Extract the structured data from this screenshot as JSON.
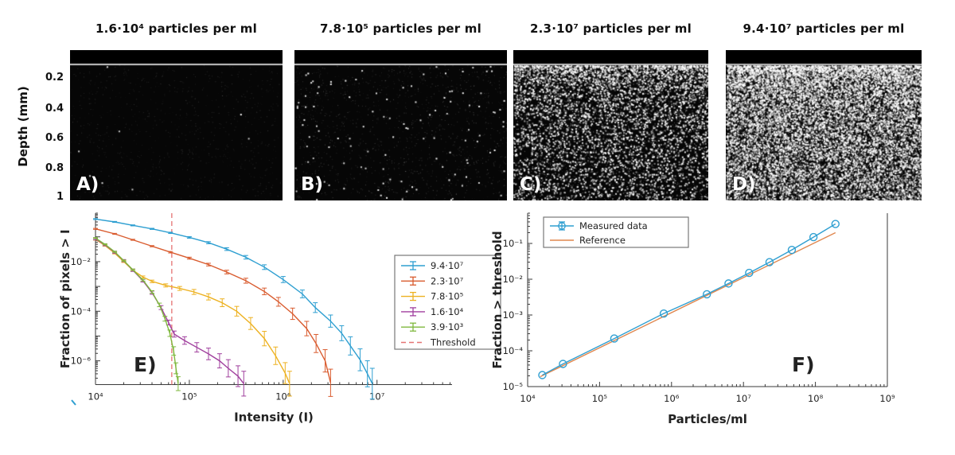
{
  "figure": {
    "depth_axis": {
      "label": "Depth (mm)",
      "ticks": [
        "0.2",
        "0.4",
        "0.6",
        "0.8",
        "1"
      ]
    },
    "panels": [
      {
        "letter": "A)",
        "title": "1.6·10⁴ particles per ml",
        "speckle": {
          "band_h": 17,
          "line_color": "#c9c9c9",
          "dots": [
            {
              "count": 900,
              "size": 1,
              "a": [
                0.04,
                0.2
              ],
              "bias": 1.0
            },
            {
              "count": 8,
              "size": 2,
              "a": [
                0.7,
                1.0
              ],
              "bias": 1.0
            }
          ]
        }
      },
      {
        "letter": "B)",
        "title": "7.8·10⁵ particles per ml",
        "speckle": {
          "band_h": 17,
          "line_color": "#c9c9c9",
          "dots": [
            {
              "count": 1300,
              "size": 1,
              "a": [
                0.05,
                0.28
              ],
              "bias": 1.0
            },
            {
              "count": 115,
              "size": 2,
              "a": [
                0.75,
                1.0
              ],
              "bias": 1.0
            }
          ]
        }
      },
      {
        "letter": "C)",
        "title": "2.3·10⁷ particles per ml",
        "speckle": {
          "band_h": 17,
          "line_color": "#bdbdbd",
          "dots": [
            {
              "count": 4500,
              "size": 2,
              "a": [
                0.3,
                1.0
              ],
              "bias": 1.6
            },
            {
              "count": 2600,
              "size": 1,
              "a": [
                0.15,
                0.5
              ],
              "bias": 1.2
            }
          ]
        }
      },
      {
        "letter": "D)",
        "title": "9.4·10⁷ particles per ml",
        "speckle": {
          "band_h": 17,
          "line_color": "#b5b5b5",
          "dots": [
            {
              "count": 9500,
              "size": 2,
              "a": [
                0.3,
                1.0
              ],
              "bias": 1.35
            },
            {
              "count": 9000,
              "size": 1,
              "a": [
                0.2,
                0.7
              ],
              "bias": 1.0
            }
          ]
        }
      }
    ]
  },
  "chart_data": [
    {
      "id": "E",
      "type": "line",
      "panel_label": "E)",
      "xlabel": "Intensity (I)",
      "ylabel": "Fraction of pixels > I",
      "xscale": "log",
      "yscale": "log",
      "xlim": [
        10000.0,
        63000000.0
      ],
      "ylim": [
        1.1e-07,
        0.9
      ],
      "grid": false,
      "legend_position": "right-center",
      "xticks": [
        {
          "v": 10000.0,
          "label": "10⁴"
        },
        {
          "v": 100000.0,
          "label": "10⁵"
        },
        {
          "v": 1000000.0,
          "label": "10⁶"
        },
        {
          "v": 10000000.0,
          "label": "10⁷"
        }
      ],
      "yticks": [
        {
          "v": 0.01,
          "label": "10⁻²"
        },
        {
          "v": 0.0001,
          "label": "10⁻⁴"
        },
        {
          "v": 1e-06,
          "label": "10⁻⁶"
        }
      ],
      "threshold": {
        "x": 65000.0,
        "label": "Threshold",
        "color": "#e57373"
      },
      "series": [
        {
          "name": "9.4·10⁷",
          "color": "#2e9fd1",
          "err_log": [
            0.02,
            0.62
          ],
          "points": [
            [
              10000.0,
              0.52
            ],
            [
              16000.0,
              0.4
            ],
            [
              25000.0,
              0.29
            ],
            [
              40000.0,
              0.21
            ],
            [
              63000.0,
              0.145
            ],
            [
              100000.0,
              0.095
            ],
            [
              160000.0,
              0.058
            ],
            [
              250000.0,
              0.032
            ],
            [
              400000.0,
              0.015
            ],
            [
              630000.0,
              0.006
            ],
            [
              1000000.0,
              0.0019
            ],
            [
              1600000.0,
              0.0005
            ],
            [
              2200000.0,
              0.00014
            ],
            [
              3200000.0,
              4e-05
            ],
            [
              4200000.0,
              1.3e-05
            ],
            [
              5200000.0,
              4e-06
            ],
            [
              6600000.0,
              1.1e-06
            ],
            [
              7900000.0,
              3e-07
            ],
            [
              8900000.0,
              1.2e-07
            ]
          ]
        },
        {
          "name": "2.3·10⁷",
          "color": "#d95b2e",
          "err_log": [
            0.02,
            0.55
          ],
          "points": [
            [
              10000.0,
              0.21
            ],
            [
              16000.0,
              0.132
            ],
            [
              25000.0,
              0.076
            ],
            [
              40000.0,
              0.042
            ],
            [
              63000.0,
              0.024
            ],
            [
              100000.0,
              0.0138
            ],
            [
              160000.0,
              0.0076
            ],
            [
              250000.0,
              0.0038
            ],
            [
              400000.0,
              0.0017
            ],
            [
              630000.0,
              0.00063
            ],
            [
              890000.0,
              0.00024
            ],
            [
              1260000.0,
              7.9e-05
            ],
            [
              1780000.0,
              2e-05
            ],
            [
              2240000.0,
              5e-06
            ],
            [
              2800000.0,
              1e-06
            ],
            [
              3200000.0,
              1.3e-07
            ]
          ]
        },
        {
          "name": "7.8·10⁵",
          "color": "#edb120",
          "err_log": [
            0.03,
            0.5
          ],
          "points": [
            [
              10000.0,
              0.079
            ],
            [
              12600.0,
              0.045
            ],
            [
              16000.0,
              0.022
            ],
            [
              20000.0,
              0.01
            ],
            [
              25000.0,
              0.0045
            ],
            [
              32000.0,
              0.0024
            ],
            [
              40000.0,
              0.0016
            ],
            [
              56000.0,
              0.0011
            ],
            [
              79000.0,
              0.00083
            ],
            [
              112000.0,
              0.0006
            ],
            [
              160000.0,
              0.00038
            ],
            [
              224000.0,
              0.00022
            ],
            [
              320000.0,
              0.0001
            ],
            [
              450000.0,
              3.2e-05
            ],
            [
              630000.0,
              7.9e-06
            ],
            [
              830000.0,
              1.6e-06
            ],
            [
              1050000.0,
              3.2e-07
            ],
            [
              1170000.0,
              1.2e-07
            ]
          ]
        },
        {
          "name": "1.6·10⁴",
          "color": "#a03f9d",
          "err_log": [
            0.04,
            0.5
          ],
          "points": [
            [
              10000.0,
              0.083
            ],
            [
              12600.0,
              0.048
            ],
            [
              16000.0,
              0.024
            ],
            [
              20000.0,
              0.011
            ],
            [
              25000.0,
              0.0045
            ],
            [
              32000.0,
              0.0017
            ],
            [
              40000.0,
              0.00056
            ],
            [
              50000.0,
              0.00014
            ],
            [
              60000.0,
              3.5e-05
            ],
            [
              69000.0,
              1.2e-05
            ],
            [
              89000.0,
              6.6e-06
            ],
            [
              120000.0,
              3.5e-06
            ],
            [
              160000.0,
              1.9e-06
            ],
            [
              210000.0,
              1e-06
            ],
            [
              260000.0,
              5e-07
            ],
            [
              330000.0,
              2.4e-07
            ],
            [
              380000.0,
              1.2e-07
            ]
          ]
        },
        {
          "name": "3.9·10³",
          "color": "#7fb83e",
          "err_log": [
            0.02,
            0.28
          ],
          "points": [
            [
              10000.0,
              0.089
            ],
            [
              12600.0,
              0.05
            ],
            [
              16000.0,
              0.025
            ],
            [
              20000.0,
              0.011
            ],
            [
              25000.0,
              0.0047
            ],
            [
              32000.0,
              0.0018
            ],
            [
              40000.0,
              0.0006
            ],
            [
              48000.0,
              0.00018
            ],
            [
              55000.0,
              5e-05
            ],
            [
              62000.0,
              1.3e-05
            ],
            [
              68000.0,
              2.5e-06
            ],
            [
              72000.0,
              5e-07
            ],
            [
              76000.0,
              1.2e-07
            ]
          ]
        }
      ]
    },
    {
      "id": "F",
      "type": "scatter-line",
      "panel_label": "F)",
      "xlabel": "Particles/ml",
      "ylabel": "Fraction > threshold",
      "xscale": "log",
      "yscale": "log",
      "xlim": [
        10000.0,
        1000000000.0
      ],
      "ylim": [
        1e-05,
        0.7
      ],
      "grid": false,
      "legend_position": "top-left",
      "xticks": [
        {
          "v": 10000.0,
          "label": "10⁴"
        },
        {
          "v": 100000.0,
          "label": "10⁵"
        },
        {
          "v": 1000000.0,
          "label": "10⁶"
        },
        {
          "v": 10000000.0,
          "label": "10⁷"
        },
        {
          "v": 100000000.0,
          "label": "10⁸"
        },
        {
          "v": 1000000000.0,
          "label": "10⁹"
        }
      ],
      "yticks": [
        {
          "v": 0.1,
          "label": "10⁻¹"
        },
        {
          "v": 0.01,
          "label": "10⁻²"
        },
        {
          "v": 0.001,
          "label": "10⁻³"
        },
        {
          "v": 0.0001,
          "label": "10⁻⁴"
        },
        {
          "v": 1e-05,
          "label": "10⁻⁵"
        }
      ],
      "series": [
        {
          "name": "Reference",
          "color": "#e0874f",
          "marker": "none",
          "points": [
            [
              15000.0,
              1.9e-05
            ],
            [
              190000000.0,
              0.2
            ]
          ]
        },
        {
          "name": "Measured data",
          "color": "#2f9fd1",
          "marker": "circle",
          "yerr_log": [
            0.14,
            0.09,
            0.05,
            0.04,
            0.03,
            0.02,
            0.02,
            0.02,
            0.02,
            0.02,
            0.02
          ],
          "points": [
            [
              16000.0,
              2.1e-05
            ],
            [
              31000.0,
              4.3e-05
            ],
            [
              160000.0,
              0.00022
            ],
            [
              780000.0,
              0.0011
            ],
            [
              3100000.0,
              0.0038
            ],
            [
              6200000.0,
              0.0076
            ],
            [
              12000000.0,
              0.015
            ],
            [
              23000000.0,
              0.03
            ],
            [
              47000000.0,
              0.066
            ],
            [
              94000000.0,
              0.15
            ],
            [
              190000000.0,
              0.35
            ]
          ]
        }
      ]
    }
  ]
}
